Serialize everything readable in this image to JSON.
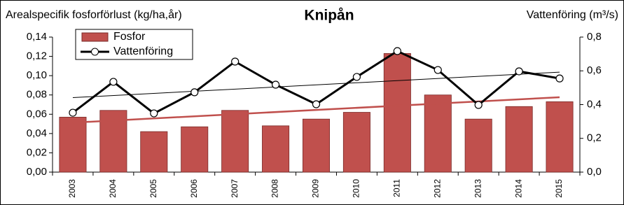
{
  "chart_data": {
    "type": "bar-line",
    "title": "Knipån",
    "ylabel": "Arealspecifik fosforförlust (kg/ha,år)",
    "y2label": "Vattenföring (m³/s)",
    "categories": [
      "2003",
      "2004",
      "2005",
      "2006",
      "2007",
      "2008",
      "2009",
      "2010",
      "2011",
      "2012",
      "2013",
      "2014",
      "2015"
    ],
    "series": [
      {
        "name": "Fosfor",
        "kind": "bar",
        "color": "#c0504d",
        "trendline": true,
        "trend_color": "#c0504d",
        "values": [
          0.057,
          0.064,
          0.042,
          0.047,
          0.064,
          0.048,
          0.055,
          0.062,
          0.123,
          0.08,
          0.055,
          0.068,
          0.073
        ]
      },
      {
        "name": "Vattenföring",
        "kind": "line",
        "axis": "y2",
        "color": "#000000",
        "trendline": true,
        "trend_color": "#000000",
        "values": [
          0.352,
          0.535,
          0.348,
          0.473,
          0.655,
          0.518,
          0.402,
          0.564,
          0.717,
          0.605,
          0.398,
          0.597,
          0.555
        ]
      }
    ],
    "ylim": [
      0,
      0.14
    ],
    "yticks": [
      {
        "value": 0,
        "label": "0,00"
      },
      {
        "value": 0.02,
        "label": "0,02"
      },
      {
        "value": 0.04,
        "label": "0,04"
      },
      {
        "value": 0.06,
        "label": "0,06"
      },
      {
        "value": 0.08,
        "label": "0,08"
      },
      {
        "value": 0.1,
        "label": "0,10"
      },
      {
        "value": 0.12,
        "label": "0,12"
      },
      {
        "value": 0.14,
        "label": "0,14"
      }
    ],
    "y2lim": [
      0,
      0.8
    ],
    "y2ticks": [
      {
        "value": 0,
        "label": "0,0"
      },
      {
        "value": 0.2,
        "label": "0,2"
      },
      {
        "value": 0.4,
        "label": "0,4"
      },
      {
        "value": 0.6,
        "label": "0,6"
      },
      {
        "value": 0.8,
        "label": "0,8"
      }
    ],
    "legend": "top-left"
  }
}
